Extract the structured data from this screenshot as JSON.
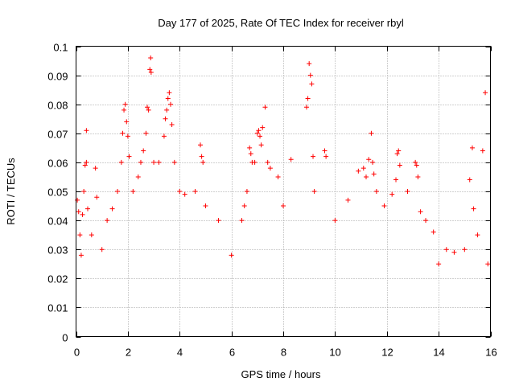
{
  "chart_data": {
    "type": "scatter",
    "title": "Day 177 of 2025, Rate Of TEC Index for receiver rbyl",
    "xlabel": "GPS time / hours",
    "ylabel": "ROTI / TECUs",
    "xlim": [
      0,
      16
    ],
    "ylim": [
      0,
      0.1
    ],
    "x_ticks": [
      0,
      2,
      4,
      6,
      8,
      10,
      12,
      14,
      16
    ],
    "x_tick_labels": [
      "0",
      "2",
      "4",
      "6",
      "8",
      "10",
      "12",
      "14",
      "16"
    ],
    "y_ticks": [
      0,
      0.01,
      0.02,
      0.03,
      0.04,
      0.05,
      0.06,
      0.07,
      0.08,
      0.09,
      0.1
    ],
    "y_tick_labels": [
      "0",
      "0.01",
      "0.02",
      "0.03",
      "0.04",
      "0.05",
      "0.06",
      "0.07",
      "0.08",
      "0.09",
      "0.1"
    ],
    "grid": true,
    "marker": "+",
    "color": "#ff0000",
    "series": [
      {
        "name": "ROTI",
        "points": [
          [
            0.05,
            0.047
          ],
          [
            0.1,
            0.043
          ],
          [
            0.15,
            0.035
          ],
          [
            0.2,
            0.028
          ],
          [
            0.25,
            0.042
          ],
          [
            0.3,
            0.05
          ],
          [
            0.35,
            0.059
          ],
          [
            0.4,
            0.06
          ],
          [
            0.4,
            0.071
          ],
          [
            0.45,
            0.044
          ],
          [
            0.6,
            0.035
          ],
          [
            0.75,
            0.058
          ],
          [
            0.8,
            0.048
          ],
          [
            1.0,
            0.03
          ],
          [
            1.2,
            0.04
          ],
          [
            1.4,
            0.044
          ],
          [
            1.6,
            0.05
          ],
          [
            1.75,
            0.06
          ],
          [
            1.8,
            0.07
          ],
          [
            1.85,
            0.078
          ],
          [
            1.9,
            0.08
          ],
          [
            1.95,
            0.074
          ],
          [
            2.0,
            0.069
          ],
          [
            2.05,
            0.062
          ],
          [
            2.2,
            0.05
          ],
          [
            2.4,
            0.055
          ],
          [
            2.5,
            0.06
          ],
          [
            2.6,
            0.064
          ],
          [
            2.7,
            0.07
          ],
          [
            2.75,
            0.079
          ],
          [
            2.8,
            0.078
          ],
          [
            2.85,
            0.092
          ],
          [
            2.88,
            0.096
          ],
          [
            2.9,
            0.091
          ],
          [
            3.0,
            0.06
          ],
          [
            3.2,
            0.06
          ],
          [
            3.4,
            0.069
          ],
          [
            3.45,
            0.075
          ],
          [
            3.5,
            0.078
          ],
          [
            3.55,
            0.082
          ],
          [
            3.6,
            0.084
          ],
          [
            3.65,
            0.08
          ],
          [
            3.7,
            0.073
          ],
          [
            3.8,
            0.06
          ],
          [
            4.0,
            0.05
          ],
          [
            4.2,
            0.049
          ],
          [
            4.6,
            0.05
          ],
          [
            4.8,
            0.066
          ],
          [
            4.85,
            0.062
          ],
          [
            4.9,
            0.06
          ],
          [
            5.0,
            0.045
          ],
          [
            5.5,
            0.04
          ],
          [
            6.0,
            0.028
          ],
          [
            6.4,
            0.04
          ],
          [
            6.5,
            0.045
          ],
          [
            6.6,
            0.05
          ],
          [
            6.7,
            0.065
          ],
          [
            6.75,
            0.063
          ],
          [
            6.8,
            0.06
          ],
          [
            6.9,
            0.06
          ],
          [
            7.0,
            0.07
          ],
          [
            7.05,
            0.071
          ],
          [
            7.1,
            0.069
          ],
          [
            7.15,
            0.066
          ],
          [
            7.2,
            0.072
          ],
          [
            7.3,
            0.079
          ],
          [
            7.4,
            0.06
          ],
          [
            7.5,
            0.058
          ],
          [
            7.8,
            0.055
          ],
          [
            8.0,
            0.045
          ],
          [
            8.3,
            0.061
          ],
          [
            8.9,
            0.079
          ],
          [
            8.95,
            0.082
          ],
          [
            9.0,
            0.094
          ],
          [
            9.05,
            0.09
          ],
          [
            9.1,
            0.087
          ],
          [
            9.15,
            0.062
          ],
          [
            9.2,
            0.05
          ],
          [
            9.6,
            0.064
          ],
          [
            9.65,
            0.062
          ],
          [
            10.0,
            0.04
          ],
          [
            10.5,
            0.047
          ],
          [
            10.9,
            0.057
          ],
          [
            11.1,
            0.058
          ],
          [
            11.2,
            0.055
          ],
          [
            11.3,
            0.061
          ],
          [
            11.4,
            0.07
          ],
          [
            11.45,
            0.06
          ],
          [
            11.5,
            0.056
          ],
          [
            11.6,
            0.05
          ],
          [
            11.9,
            0.045
          ],
          [
            12.2,
            0.049
          ],
          [
            12.35,
            0.054
          ],
          [
            12.4,
            0.063
          ],
          [
            12.45,
            0.064
          ],
          [
            12.5,
            0.059
          ],
          [
            12.8,
            0.05
          ],
          [
            13.1,
            0.06
          ],
          [
            13.15,
            0.059
          ],
          [
            13.2,
            0.055
          ],
          [
            13.3,
            0.043
          ],
          [
            13.5,
            0.04
          ],
          [
            13.8,
            0.036
          ],
          [
            14.0,
            0.025
          ],
          [
            14.3,
            0.03
          ],
          [
            14.6,
            0.029
          ],
          [
            15.0,
            0.03
          ],
          [
            15.2,
            0.054
          ],
          [
            15.3,
            0.065
          ],
          [
            15.35,
            0.044
          ],
          [
            15.5,
            0.035
          ],
          [
            15.7,
            0.064
          ],
          [
            15.8,
            0.084
          ],
          [
            15.9,
            0.025
          ]
        ]
      }
    ]
  }
}
